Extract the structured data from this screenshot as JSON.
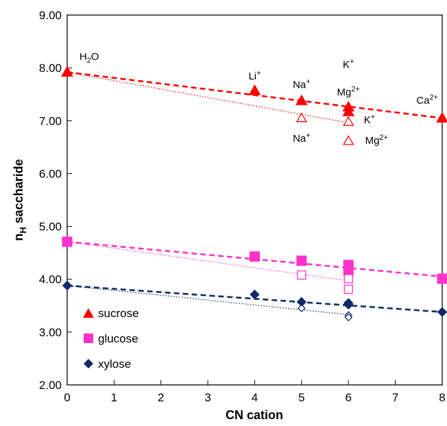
{
  "chart_data": {
    "type": "scatter",
    "title": "",
    "xlabel": "CN cation",
    "ylabel_main": "n",
    "ylabel_sub": "H",
    "ylabel_rest": " saccharide",
    "xlim": [
      0,
      8
    ],
    "ylim": [
      2,
      9
    ],
    "x_ticks": [
      "0",
      "1",
      "2",
      "3",
      "4",
      "5",
      "6",
      "7",
      "8"
    ],
    "y_ticks": [
      "2.00",
      "3.00",
      "4.00",
      "5.00",
      "6.00",
      "7.00",
      "8.00",
      "9.00"
    ],
    "grid": false,
    "legend_position": "bottom-left",
    "series": [
      {
        "name": "sucrose",
        "color": "#ff0000",
        "marker": "triangle",
        "filled": [
          [
            0,
            7.92
          ],
          [
            4,
            7.57
          ],
          [
            5,
            7.38
          ],
          [
            6,
            7.26
          ],
          [
            6,
            7.17
          ],
          [
            8,
            7.05
          ]
        ],
        "open": [
          [
            5,
            7.05
          ],
          [
            6,
            6.98
          ],
          [
            6,
            6.62
          ]
        ],
        "trend_dashed": [
          [
            0,
            7.92
          ],
          [
            8,
            7.05
          ]
        ],
        "trend_dotted": [
          [
            0,
            7.92
          ],
          [
            6,
            6.96
          ]
        ]
      },
      {
        "name": "glucose",
        "color": "#ff33cc",
        "marker": "square",
        "filled": [
          [
            0,
            4.71
          ],
          [
            4,
            4.43
          ],
          [
            5,
            4.35
          ],
          [
            6,
            4.27
          ],
          [
            6,
            4.16
          ],
          [
            8,
            4.01
          ]
        ],
        "open": [
          [
            5,
            4.08
          ],
          [
            6,
            4.01
          ],
          [
            6,
            3.81
          ]
        ],
        "trend_dashed": [
          [
            0,
            4.71
          ],
          [
            8,
            4.05
          ]
        ],
        "trend_dotted": [
          [
            0,
            4.71
          ],
          [
            6,
            3.97
          ]
        ]
      },
      {
        "name": "xylose",
        "color": "#0f2a66",
        "marker": "diamond",
        "filled": [
          [
            0,
            3.88
          ],
          [
            4,
            3.71
          ],
          [
            5,
            3.57
          ],
          [
            6,
            3.55
          ],
          [
            6,
            3.52
          ],
          [
            8,
            3.38
          ]
        ],
        "open": [
          [
            5,
            3.45
          ],
          [
            6,
            3.32
          ],
          [
            6,
            3.28
          ]
        ],
        "trend_dashed": [
          [
            0,
            3.88
          ],
          [
            8,
            3.38
          ]
        ],
        "trend_dotted": [
          [
            0,
            3.88
          ],
          [
            6,
            3.33
          ]
        ]
      }
    ],
    "annotations": [
      {
        "base": "H",
        "sub": "2",
        "rest": "O",
        "sup": "",
        "x": 0.47,
        "y": 8.15
      },
      {
        "base": "Li",
        "sub": "",
        "rest": "",
        "sup": "+",
        "x": 4.0,
        "y": 7.78
      },
      {
        "base": "Na",
        "sub": "",
        "rest": "",
        "sup": "+",
        "x": 5.0,
        "y": 7.62
      },
      {
        "base": "K",
        "sub": "",
        "rest": "",
        "sup": "+",
        "x": 6.0,
        "y": 8.0
      },
      {
        "base": "Mg",
        "sub": "",
        "rest": "",
        "sup": "2+",
        "x": 6.0,
        "y": 7.48
      },
      {
        "base": "Ca",
        "sub": "",
        "rest": "",
        "sup": "2+",
        "x": 7.68,
        "y": 7.32
      },
      {
        "base": "Na",
        "sub": "",
        "rest": "",
        "sup": "+",
        "x": 5.0,
        "y": 6.6
      },
      {
        "base": "K",
        "sub": "",
        "rest": "",
        "sup": "+",
        "x": 6.45,
        "y": 6.95
      },
      {
        "base": "Mg",
        "sub": "",
        "rest": "",
        "sup": "2+",
        "x": 6.6,
        "y": 6.56
      }
    ]
  }
}
